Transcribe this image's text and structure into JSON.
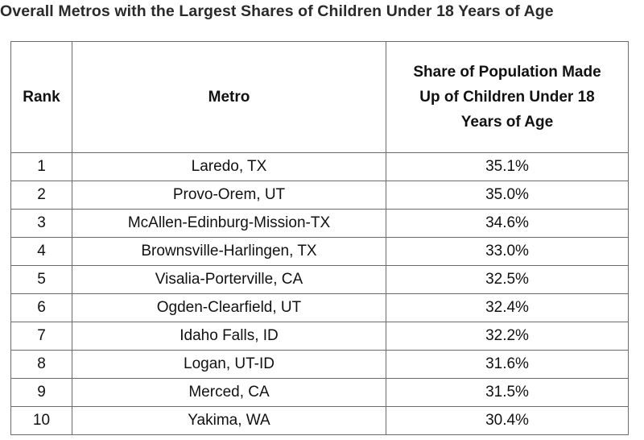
{
  "title": "Overall Metros with the Largest Shares of Children Under 18 Years of Age",
  "table": {
    "headers": {
      "rank": "Rank",
      "metro": "Metro",
      "share": "Share of Population Made Up of Children Under 18 Years of Age"
    },
    "rows": [
      {
        "rank": "1",
        "metro": "Laredo, TX",
        "share": "35.1%"
      },
      {
        "rank": "2",
        "metro": "Provo-Orem, UT",
        "share": "35.0%"
      },
      {
        "rank": "3",
        "metro": "McAllen-Edinburg-Mission-TX",
        "share": "34.6%"
      },
      {
        "rank": "4",
        "metro": "Brownsville-Harlingen, TX",
        "share": "33.0%"
      },
      {
        "rank": "5",
        "metro": "Visalia-Porterville, CA",
        "share": "32.5%"
      },
      {
        "rank": "6",
        "metro": "Ogden-Clearfield, UT",
        "share": "32.4%"
      },
      {
        "rank": "7",
        "metro": "Idaho Falls, ID",
        "share": "32.2%"
      },
      {
        "rank": "8",
        "metro": "Logan, UT-ID",
        "share": "31.6%"
      },
      {
        "rank": "9",
        "metro": "Merced, CA",
        "share": "31.5%"
      },
      {
        "rank": "10",
        "metro": "Yakima, WA",
        "share": "30.4%"
      }
    ]
  }
}
